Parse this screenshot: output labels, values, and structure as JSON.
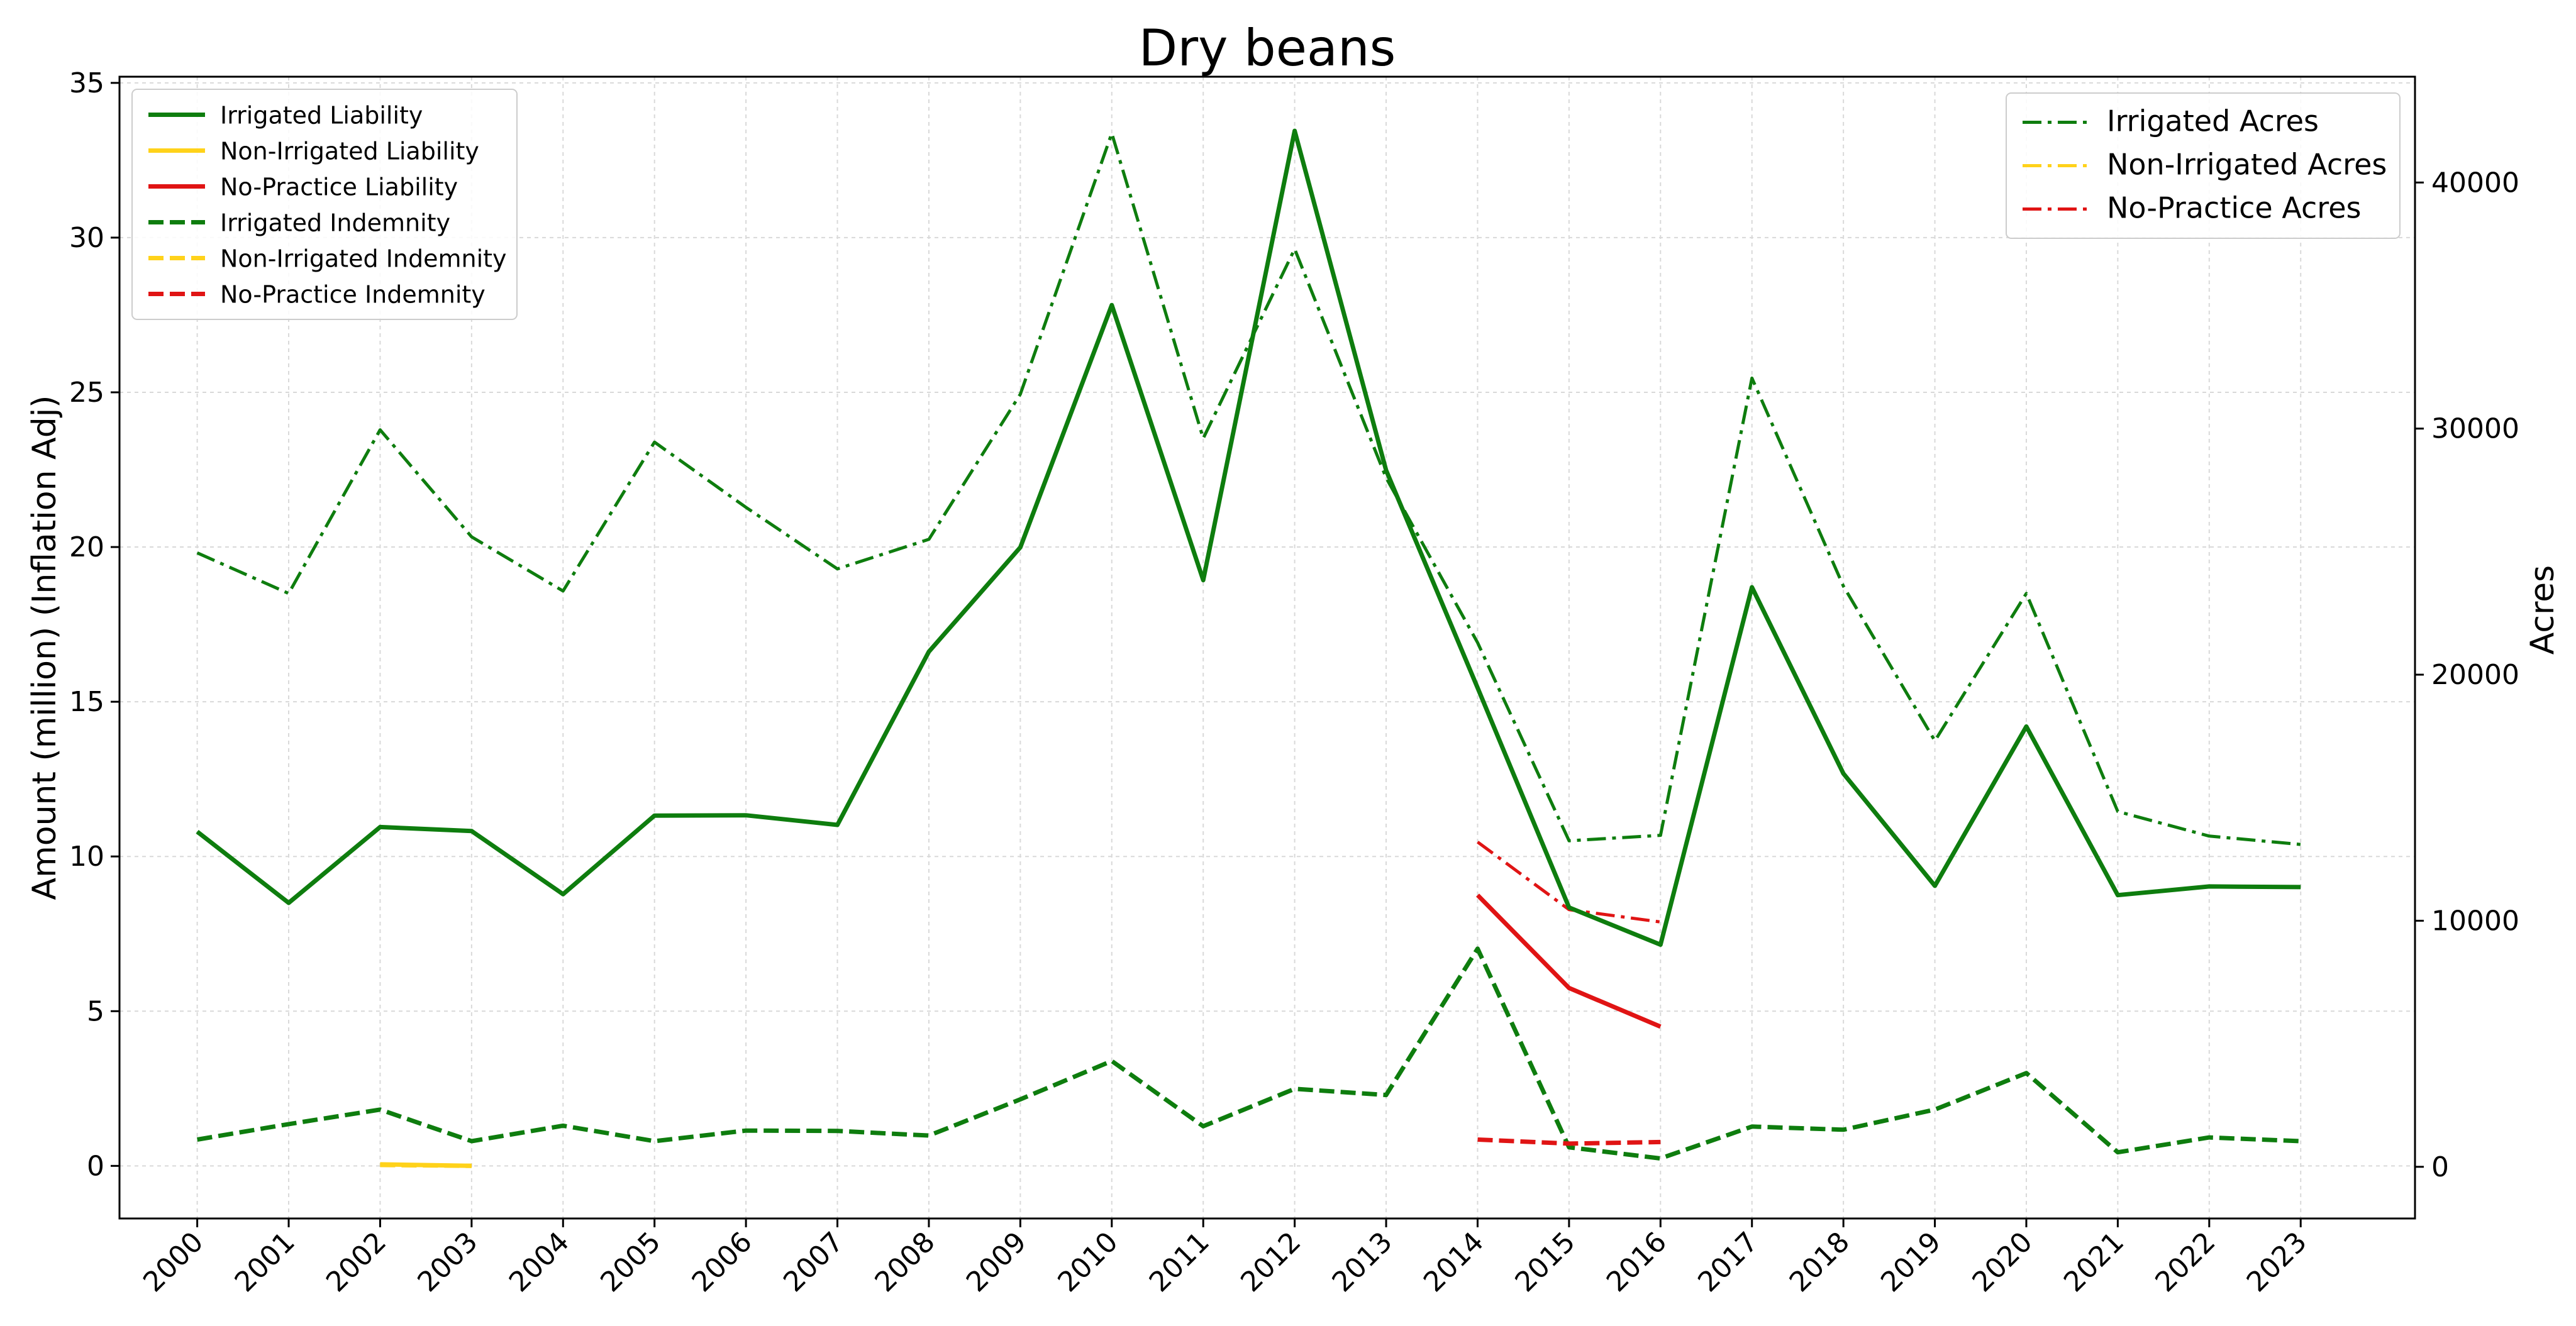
{
  "chart_data": {
    "type": "line",
    "title": "Dry beans",
    "xlabel": "",
    "ylabel": "Amount (million) (Inflation Adj)",
    "y2label": "Acres",
    "x": [
      2000,
      2001,
      2002,
      2003,
      2004,
      2005,
      2006,
      2007,
      2008,
      2009,
      2010,
      2011,
      2012,
      2013,
      2014,
      2015,
      2016,
      2017,
      2018,
      2019,
      2020,
      2021,
      2022,
      2023
    ],
    "x_tick_labels": [
      "2000",
      "2001",
      "2002",
      "2003",
      "2004",
      "2005",
      "2006",
      "2007",
      "2008",
      "2009",
      "2010",
      "2011",
      "2012",
      "2013",
      "2014",
      "2015",
      "2016",
      "2017",
      "2018",
      "2019",
      "2020",
      "2021",
      "2022",
      "2023"
    ],
    "ylim": [
      -1.7,
      35.2
    ],
    "y_ticks": [
      0,
      5,
      10,
      15,
      20,
      25,
      30,
      35
    ],
    "y_tick_labels": [
      "0",
      "5",
      "10",
      "15",
      "20",
      "25",
      "30",
      "35"
    ],
    "y2lim": [
      -2100,
      44300
    ],
    "y2_ticks": [
      0,
      10000,
      20000,
      30000,
      40000
    ],
    "y2_tick_labels": [
      "0",
      "10000",
      "20000",
      "30000",
      "40000"
    ],
    "grid": true,
    "legend_left_position": "upper-left",
    "legend_right_position": "upper-right",
    "series": [
      {
        "name": "Irrigated Liability",
        "axis": "left",
        "style": "solid",
        "color": "#0e7d0e",
        "x": [
          2000,
          2001,
          2002,
          2003,
          2004,
          2005,
          2006,
          2007,
          2008,
          2009,
          2010,
          2011,
          2012,
          2013,
          2014,
          2015,
          2016,
          2017,
          2018,
          2019,
          2020,
          2021,
          2022,
          2023
        ],
        "values": [
          10.8,
          8.5,
          10.95,
          10.82,
          8.78,
          11.32,
          11.33,
          11.02,
          16.62,
          19.99,
          27.82,
          18.93,
          33.45,
          22.48,
          15.45,
          8.35,
          7.15,
          18.7,
          12.68,
          9.05,
          14.2,
          8.75,
          9.03,
          9.01
        ]
      },
      {
        "name": "Non-Irrigated Liability",
        "axis": "left",
        "style": "solid",
        "color": "#ffd21a",
        "x": [
          2002,
          2003
        ],
        "values": [
          0.05,
          0.0
        ]
      },
      {
        "name": "No-Practice Liability",
        "axis": "left",
        "style": "solid",
        "color": "#e01414",
        "x": [
          2014,
          2015,
          2016
        ],
        "values": [
          8.75,
          5.75,
          4.5
        ]
      },
      {
        "name": "Irrigated Indemnity",
        "axis": "left",
        "style": "dashed",
        "color": "#0e7d0e",
        "x": [
          2000,
          2001,
          2002,
          2003,
          2004,
          2005,
          2006,
          2007,
          2008,
          2009,
          2010,
          2011,
          2012,
          2013,
          2014,
          2015,
          2016,
          2017,
          2018,
          2019,
          2020,
          2021,
          2022,
          2023
        ],
        "values": [
          0.85,
          1.35,
          1.82,
          0.8,
          1.3,
          0.8,
          1.14,
          1.13,
          0.98,
          2.15,
          3.39,
          1.28,
          2.49,
          2.29,
          7.02,
          0.6,
          0.24,
          1.27,
          1.17,
          1.82,
          3.0,
          0.44,
          0.92,
          0.8
        ]
      },
      {
        "name": "Non-Irrigated Indemnity",
        "axis": "left",
        "style": "dashed",
        "color": "#ffd21a",
        "x": [
          2002,
          2003
        ],
        "values": [
          0.03,
          0.0
        ]
      },
      {
        "name": "No-Practice Indemnity",
        "axis": "left",
        "style": "dashed",
        "color": "#e01414",
        "x": [
          2014,
          2015,
          2016
        ],
        "values": [
          0.85,
          0.72,
          0.77
        ]
      },
      {
        "name": "Irrigated Acres",
        "axis": "right",
        "style": "dashdot",
        "color": "#0e7d0e",
        "x": [
          2000,
          2001,
          2002,
          2003,
          2004,
          2005,
          2006,
          2007,
          2008,
          2009,
          2010,
          2011,
          2012,
          2013,
          2014,
          2015,
          2016,
          2017,
          2018,
          2019,
          2020,
          2021,
          2022,
          2023
        ],
        "values": [
          24950,
          23300,
          29950,
          25600,
          23400,
          29450,
          26800,
          24300,
          25500,
          31400,
          42000,
          29600,
          37300,
          28000,
          21300,
          13250,
          13470,
          32050,
          23600,
          17310,
          23300,
          14440,
          13440,
          13100
        ]
      },
      {
        "name": "Non-Irrigated Acres",
        "axis": "right",
        "style": "dashdot",
        "color": "#ffd21a",
        "x": [],
        "values": []
      },
      {
        "name": "No-Practice Acres",
        "axis": "right",
        "style": "dashdot",
        "color": "#e01414",
        "x": [
          2014,
          2015,
          2016
        ],
        "values": [
          13200,
          10450,
          9950
        ]
      }
    ]
  }
}
